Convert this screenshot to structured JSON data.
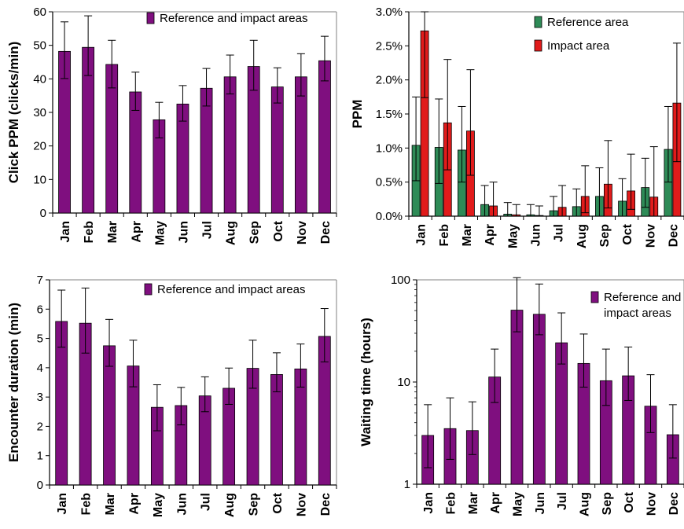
{
  "chart_data": [
    {
      "id": "click-ppm",
      "type": "bar",
      "ylabel": "Click PPM (clicks/min)",
      "yscale": "linear",
      "ylim": [
        0,
        60
      ],
      "yticks": [
        0,
        10,
        20,
        30,
        40,
        50,
        60
      ],
      "ytick_labels": [
        "0",
        "10",
        "20",
        "30",
        "40",
        "50",
        "60"
      ],
      "categories": [
        "Jan",
        "Feb",
        "Mar",
        "Apr",
        "May",
        "Jun",
        "Jul",
        "Aug",
        "Sep",
        "Oct",
        "Nov",
        "Dec"
      ],
      "series": [
        {
          "name": "Reference and impact areas",
          "color": "#7f0f7f",
          "values": [
            48.2,
            49.4,
            44.3,
            36.1,
            27.8,
            32.5,
            37.2,
            40.6,
            43.7,
            37.6,
            40.6,
            45.4
          ],
          "err_low": [
            40.1,
            41.0,
            37.3,
            30.6,
            22.4,
            27.4,
            31.9,
            35.5,
            36.6,
            32.8,
            34.9,
            39.4
          ],
          "err_high": [
            57.0,
            58.8,
            51.5,
            42.0,
            33.0,
            38.0,
            43.1,
            47.1,
            51.5,
            43.3,
            47.5,
            52.7
          ]
        }
      ],
      "legend": {
        "position": "top-right",
        "lines": [
          "Reference and impact areas"
        ]
      },
      "grid": false
    },
    {
      "id": "ppm",
      "type": "bar",
      "ylabel": "PPM",
      "yscale": "linear",
      "ylim": [
        0,
        3.0
      ],
      "yticks": [
        0,
        0.5,
        1.0,
        1.5,
        2.0,
        2.5,
        3.0
      ],
      "ytick_labels": [
        "0.0%",
        "0.5%",
        "1.0%",
        "1.5%",
        "2.0%",
        "2.5%",
        "3.0%"
      ],
      "categories": [
        "Jan",
        "Feb",
        "Mar",
        "Apr",
        "May",
        "Jun",
        "Jul",
        "Aug",
        "Sep",
        "Oct",
        "Nov",
        "Dec"
      ],
      "series": [
        {
          "name": "Reference area",
          "color": "#2e8b57",
          "values": [
            1.04,
            1.01,
            0.97,
            0.17,
            0.03,
            0.02,
            0.08,
            0.14,
            0.29,
            0.22,
            0.42,
            0.98
          ],
          "err_low": [
            0.52,
            0.48,
            0.5,
            0.0,
            0.0,
            0.0,
            0.0,
            0.0,
            0.0,
            0.0,
            0.13,
            0.5
          ],
          "err_high": [
            1.75,
            1.72,
            1.61,
            0.45,
            0.2,
            0.17,
            0.29,
            0.4,
            0.71,
            0.55,
            0.85,
            1.61
          ]
        },
        {
          "name": "Impact area",
          "color": "#e11b1b",
          "values": [
            2.72,
            1.37,
            1.25,
            0.15,
            0.02,
            0.01,
            0.13,
            0.29,
            0.47,
            0.37,
            0.28,
            1.66
          ],
          "err_low": [
            1.74,
            0.68,
            0.6,
            0.0,
            0.0,
            0.0,
            0.0,
            0.05,
            0.12,
            0.1,
            0.0,
            0.8
          ],
          "err_high": [
            3.0,
            2.3,
            2.15,
            0.5,
            0.17,
            0.15,
            0.45,
            0.74,
            1.11,
            0.91,
            1.02,
            2.54
          ]
        }
      ],
      "legend": {
        "position": "top-right",
        "lines": [
          "Reference area",
          "Impact area"
        ]
      },
      "grid": false
    },
    {
      "id": "encounter-duration",
      "type": "bar",
      "ylabel": "Encounter duration (min)",
      "yscale": "linear",
      "ylim": [
        0,
        7
      ],
      "yticks": [
        0,
        1,
        2,
        3,
        4,
        5,
        6,
        7
      ],
      "ytick_labels": [
        "0",
        "1",
        "2",
        "3",
        "4",
        "5",
        "6",
        "7"
      ],
      "categories": [
        "Jan",
        "Feb",
        "Mar",
        "Apr",
        "May",
        "Jun",
        "Jul",
        "Aug",
        "Sep",
        "Oct",
        "Nov",
        "Dec"
      ],
      "series": [
        {
          "name": "Reference and impact areas",
          "color": "#7f0f7f",
          "values": [
            5.58,
            5.52,
            4.75,
            4.06,
            2.65,
            2.71,
            3.04,
            3.3,
            3.98,
            3.77,
            3.96,
            5.07
          ],
          "err_low": [
            4.7,
            4.5,
            4.05,
            3.35,
            1.85,
            2.05,
            2.5,
            2.75,
            3.3,
            3.18,
            3.34,
            4.2
          ],
          "err_high": [
            6.65,
            6.72,
            5.65,
            4.94,
            3.42,
            3.33,
            3.69,
            3.99,
            4.94,
            4.51,
            4.81,
            6.02
          ]
        }
      ],
      "legend": {
        "position": "top-right",
        "lines": [
          "Reference and impact areas"
        ]
      },
      "grid": false
    },
    {
      "id": "waiting-time",
      "type": "bar",
      "ylabel": "Waiting time (hours)",
      "yscale": "log",
      "ylim": [
        1,
        100
      ],
      "yticks": [
        1,
        10,
        100
      ],
      "ytick_labels": [
        "1",
        "10",
        "100"
      ],
      "categories": [
        "Jan",
        "Feb",
        "Mar",
        "Apr",
        "May",
        "Jun",
        "Jul",
        "Aug",
        "Sep",
        "Oct",
        "Nov",
        "Dec"
      ],
      "series": [
        {
          "name": "Reference and impact areas",
          "color": "#7f0f7f",
          "values": [
            3.0,
            3.5,
            3.35,
            11.2,
            50.5,
            46.0,
            24.2,
            15.2,
            10.3,
            11.5,
            5.8,
            3.05
          ],
          "err_low": [
            1.45,
            1.75,
            1.95,
            6.3,
            31.0,
            29.0,
            15.0,
            8.9,
            5.9,
            6.6,
            3.2,
            1.8
          ],
          "err_high": [
            6.0,
            7.0,
            6.4,
            21.0,
            105,
            91.0,
            47.5,
            29.5,
            21.0,
            22.0,
            11.8,
            6.0
          ]
        }
      ],
      "legend": {
        "position": "top-right",
        "lines": [
          "Reference and",
          "impact areas"
        ]
      },
      "grid": false
    }
  ]
}
